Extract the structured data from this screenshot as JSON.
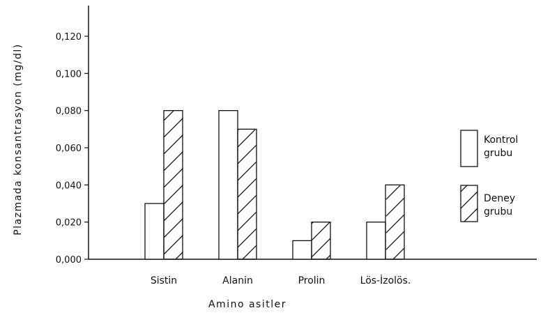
{
  "chart_data": {
    "type": "bar",
    "title": "",
    "xlabel": "Amino asitler",
    "ylabel": "Plazmada konsantrasyon (mg/dl)",
    "ylim": [
      0,
      0.13
    ],
    "yticks": [
      "0,000",
      "0,020",
      "0,040",
      "0,060",
      "0,080",
      "0,100",
      "0,120"
    ],
    "ytick_values": [
      0,
      0.02,
      0.04,
      0.06,
      0.08,
      0.1,
      0.12
    ],
    "categories": [
      "Sistin",
      "Alanin",
      "Prolin",
      "Lös-İzolös."
    ],
    "series": [
      {
        "name": "Kontrol grubu",
        "name_lines": [
          "Kontrol",
          "grubu"
        ],
        "values": [
          0.03,
          0.08,
          0.01,
          0.02
        ],
        "fill": "plain"
      },
      {
        "name": "Deney grubu",
        "name_lines": [
          "Deney",
          "grubu"
        ],
        "values": [
          0.08,
          0.07,
          0.02,
          0.04
        ],
        "fill": "hatched"
      }
    ],
    "grid": false,
    "legend": "right"
  }
}
